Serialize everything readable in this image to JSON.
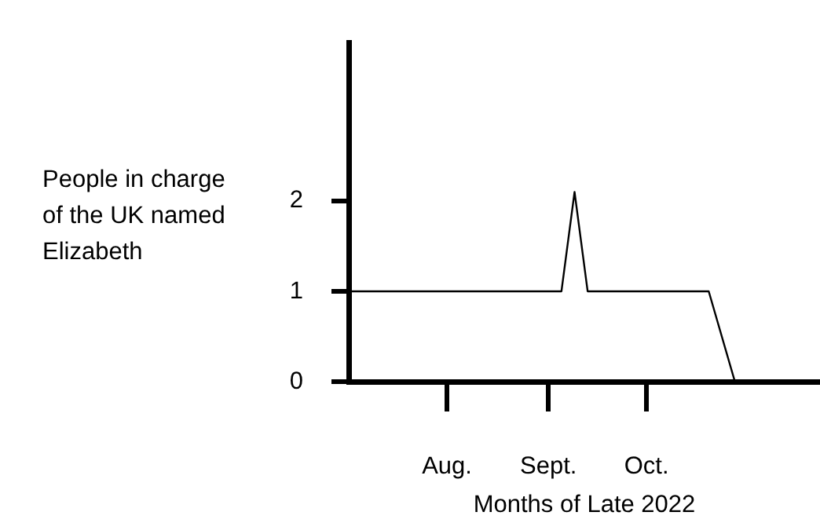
{
  "chart_data": {
    "type": "line",
    "xlabel": "Months of Late 2022",
    "ylabel": "People in charge of the UK named Elizabeth",
    "x": [
      "2022-07-02",
      "2022-09-05",
      "2022-09-09",
      "2022-09-13",
      "2022-10-20",
      "2022-10-28"
    ],
    "values": [
      1,
      1,
      2.1,
      1,
      1,
      0
    ],
    "color": "#000000",
    "xlim": [
      "2022-07-02",
      "2022-11-23"
    ],
    "xticks": [
      {
        "value": "2022-08-01",
        "label": "Aug."
      },
      {
        "value": "2022-09-01",
        "label": "Sept."
      },
      {
        "value": "2022-10-01",
        "label": "Oct."
      }
    ],
    "ylim": [
      0,
      3.75
    ],
    "yticks": [
      0,
      1,
      2
    ],
    "grid": false,
    "legend": false,
    "marker": "none",
    "line_style": "solid"
  }
}
